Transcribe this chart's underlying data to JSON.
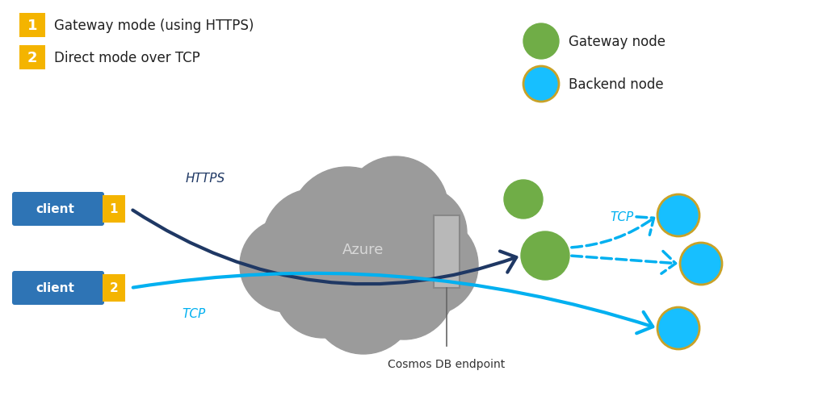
{
  "bg_color": "#ffffff",
  "cloud_color": "#9B9B9B",
  "client_box_color": "#2E74B5",
  "client_text_color": "#ffffff",
  "badge_color": "#F4B400",
  "badge_text_color": "#ffffff",
  "gateway_node_color": "#70AD47",
  "backend_node_color": "#17BFFF",
  "backend_node_edge": "#C9A227",
  "endpoint_box_color": "#b0b0b0",
  "endpoint_box_edge": "#888888",
  "arrow_https_color": "#1F3864",
  "arrow_tcp_direct_color": "#00B0F0",
  "arrow_tcp_dashed_color": "#00B0F0",
  "legend1_label": "Gateway mode (using HTTPS)",
  "legend2_label": "Direct mode over TCP",
  "legend_gateway_label": "Gateway node",
  "legend_backend_label": "Backend node",
  "client1_label": "client",
  "client2_label": "client",
  "badge1": "1",
  "badge2": "2",
  "https_label": "HTTPS",
  "tcp_label1": "TCP",
  "tcp_label2": "TCP",
  "azure_label": "Azure",
  "endpoint_label": "Cosmos DB endpoint",
  "figsize": [
    10.19,
    5.02
  ],
  "dpi": 100
}
